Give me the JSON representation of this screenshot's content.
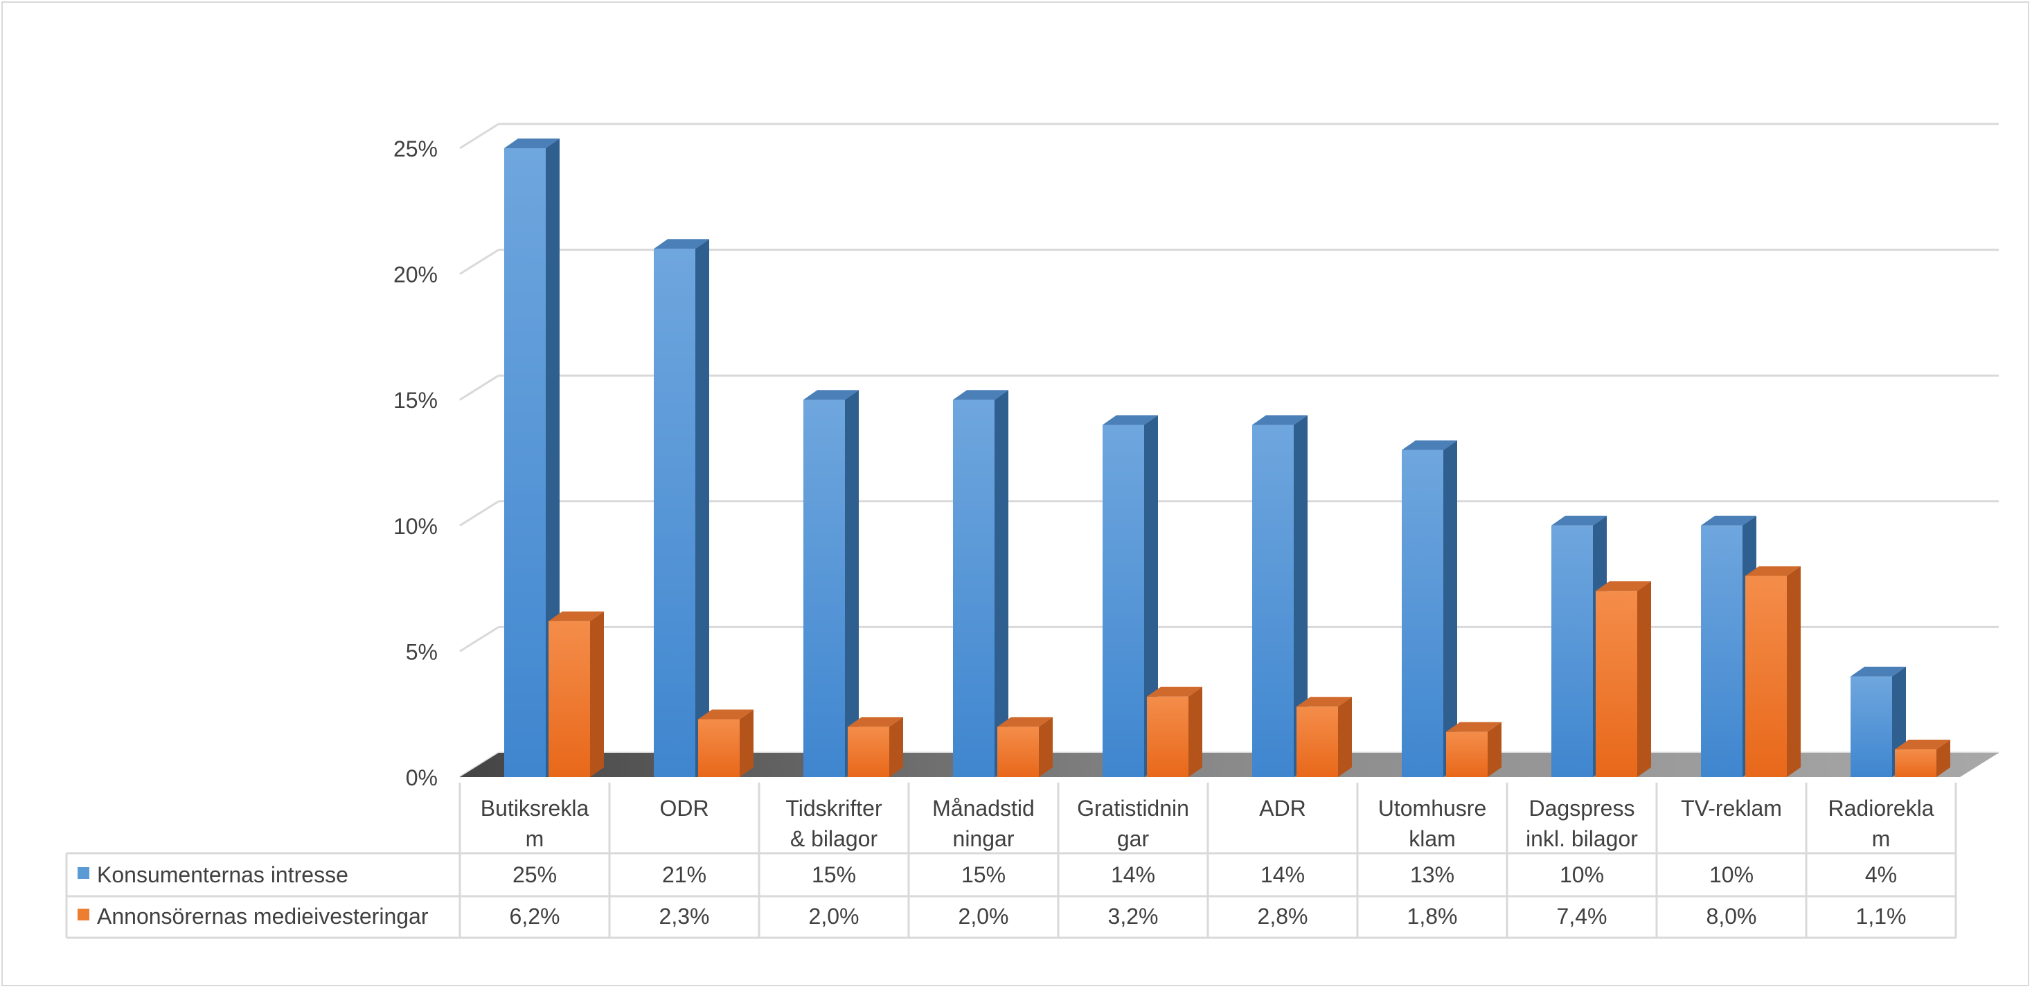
{
  "chart_data": {
    "type": "bar",
    "title": "",
    "xlabel": "",
    "ylabel": "",
    "ylim": [
      0,
      0.25
    ],
    "y_ticks": [
      0,
      0.05,
      0.1,
      0.15,
      0.2,
      0.25
    ],
    "y_tick_labels": [
      "0%",
      "5%",
      "10%",
      "15%",
      "20%",
      "25%"
    ],
    "grid": true,
    "three_d": true,
    "legend_placement": "data table",
    "categories": [
      [
        "Butiksrekla",
        "m"
      ],
      [
        "ODR"
      ],
      [
        "Tidskrifter",
        "& bilagor"
      ],
      [
        "Månadstid",
        "ningar"
      ],
      [
        "Gratistidnin",
        "gar"
      ],
      [
        "ADR"
      ],
      [
        "Utomhusre",
        "klam"
      ],
      [
        "Dagspress",
        "inkl. bilagor"
      ],
      [
        "TV-reklam"
      ],
      [
        "Radiorekla",
        "m"
      ]
    ],
    "series": [
      {
        "name": "Konsumenternas intresse",
        "color": "#5b9bd5",
        "values": [
          0.25,
          0.21,
          0.15,
          0.15,
          0.14,
          0.14,
          0.13,
          0.1,
          0.1,
          0.04
        ],
        "labels": [
          "25%",
          "21%",
          "15%",
          "15%",
          "14%",
          "14%",
          "13%",
          "10%",
          "10%",
          "4%"
        ]
      },
      {
        "name": "Annonsörernas medieivesteringar",
        "color": "#ed7d31",
        "values": [
          0.062,
          0.023,
          0.02,
          0.02,
          0.032,
          0.028,
          0.018,
          0.074,
          0.08,
          0.011
        ],
        "labels": [
          "6,2%",
          "2,3%",
          "2,0%",
          "2,0%",
          "3,2%",
          "2,8%",
          "1,8%",
          "7,4%",
          "8,0%",
          "1,1%"
        ]
      }
    ]
  }
}
